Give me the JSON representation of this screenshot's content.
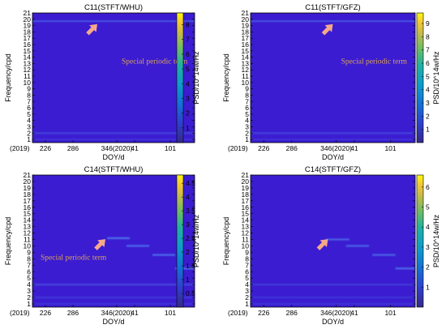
{
  "colors": {
    "background": "#3b1cd0",
    "annotation": "#d9a15a",
    "arrow": "#f5a98a",
    "frame": "#000000"
  },
  "chart_data": [
    {
      "type": "heatmap",
      "title": "C11(STFT/WHU)",
      "xlabel": "DOY/d",
      "ylabel": "Frequency/cpd",
      "colorbar_label": "PSD/10^14w/Hz",
      "x_ticks": [
        "(2019)",
        "226",
        "286",
        "346(2020)",
        "41",
        "101"
      ],
      "y_ticks": [
        "1",
        "2",
        "3",
        "4",
        "5",
        "6",
        "7",
        "8",
        "9",
        "10",
        "11",
        "12",
        "13",
        "14",
        "15",
        "16",
        "17",
        "18",
        "19",
        "20",
        "21"
      ],
      "ylim": [
        0.5,
        21
      ],
      "colorbar_ticks": [
        "1",
        "2",
        "3",
        "4",
        "5",
        "6",
        "7",
        "8"
      ],
      "colorbar_range": [
        0,
        8.8
      ],
      "annotation": "Special periodic term",
      "features": [
        {
          "frequency": 2,
          "intensity": 0.3,
          "kind": "band"
        },
        {
          "frequency": 1,
          "intensity": 0.18,
          "kind": "band"
        },
        {
          "frequency": 19.7,
          "intensity": 0.55,
          "kind": "line"
        }
      ],
      "arrow_target_frequency": 19.5
    },
    {
      "type": "heatmap",
      "title": "C11(STFT/GFZ)",
      "xlabel": "DOY/d",
      "ylabel": "Frequency/cpd",
      "colorbar_label": "PSD/10^14w/Hz",
      "x_ticks": [
        "(2019)",
        "226",
        "286",
        "346(2020)",
        "41",
        "101"
      ],
      "y_ticks": [
        "1",
        "2",
        "3",
        "4",
        "5",
        "6",
        "7",
        "8",
        "9",
        "10",
        "11",
        "12",
        "13",
        "14",
        "15",
        "16",
        "17",
        "18",
        "19",
        "20",
        "21"
      ],
      "ylim": [
        0.5,
        21
      ],
      "colorbar_ticks": [
        "1",
        "2",
        "3",
        "4",
        "5",
        "6",
        "7",
        "8",
        "9"
      ],
      "colorbar_range": [
        0,
        9.8
      ],
      "annotation": "Special periodic term",
      "features": [
        {
          "frequency": 2,
          "intensity": 0.3,
          "kind": "band"
        },
        {
          "frequency": 1,
          "intensity": 0.18,
          "kind": "band"
        },
        {
          "frequency": 19.7,
          "intensity": 0.55,
          "kind": "line"
        }
      ],
      "arrow_target_frequency": 19.5
    },
    {
      "type": "heatmap",
      "title": "C14(STFT/WHU)",
      "xlabel": "DOY/d",
      "ylabel": "Frequency/cpd",
      "colorbar_label": "PSD/10^14w/Hz",
      "x_ticks": [
        "(2019)",
        "226",
        "286",
        "346(2020)",
        "41",
        "101"
      ],
      "y_ticks": [
        "1",
        "2",
        "3",
        "4",
        "5",
        "6",
        "7",
        "8",
        "9",
        "10",
        "11",
        "12",
        "13",
        "14",
        "15",
        "16",
        "17",
        "18",
        "19",
        "20",
        "21"
      ],
      "ylim": [
        0.5,
        21
      ],
      "colorbar_ticks": [
        "0.5",
        "1",
        "1.5",
        "2",
        "2.5",
        "3",
        "3.5",
        "4",
        "4.5"
      ],
      "colorbar_range": [
        0,
        4.8
      ],
      "annotation": "Special periodic term",
      "features": [
        {
          "frequency": 4,
          "intensity": 0.35,
          "kind": "band"
        },
        {
          "frequency": 2,
          "intensity": 0.22,
          "kind": "band"
        },
        {
          "frequency": 1,
          "intensity": 0.18,
          "kind": "band"
        }
      ],
      "drift": [
        {
          "frequency": 11.2,
          "x_start": 0.46,
          "x_end": 0.6,
          "intensity": 0.6
        },
        {
          "frequency": 10.0,
          "x_start": 0.58,
          "x_end": 0.72,
          "intensity": 0.55
        },
        {
          "frequency": 8.6,
          "x_start": 0.74,
          "x_end": 0.88,
          "intensity": 0.55
        },
        {
          "frequency": 6.5,
          "x_start": 0.88,
          "x_end": 1.0,
          "intensity": 0.6
        }
      ],
      "arrow_target_frequency": 11.3
    },
    {
      "type": "heatmap",
      "title": "C14(STFT/GFZ)",
      "xlabel": "DOY/d",
      "ylabel": "Frequency/cpd",
      "colorbar_label": "PSD/10^14w/Hz",
      "x_ticks": [
        "(2019)",
        "226",
        "286",
        "346(2020)",
        "41",
        "101"
      ],
      "y_ticks": [
        "1",
        "2",
        "3",
        "4",
        "5",
        "6",
        "7",
        "8",
        "9",
        "10",
        "11",
        "12",
        "13",
        "14",
        "15",
        "16",
        "17",
        "18",
        "19",
        "20",
        "21"
      ],
      "ylim": [
        0.5,
        21
      ],
      "colorbar_ticks": [
        "1",
        "2",
        "3",
        "4",
        "5",
        "6"
      ],
      "colorbar_range": [
        0,
        6.6
      ],
      "annotation": "",
      "features": [
        {
          "frequency": 4,
          "intensity": 0.25,
          "kind": "band"
        },
        {
          "frequency": 2,
          "intensity": 0.2,
          "kind": "band"
        },
        {
          "frequency": 1,
          "intensity": 0.18,
          "kind": "band"
        }
      ],
      "drift": [
        {
          "frequency": 11.0,
          "x_start": 0.46,
          "x_end": 0.6,
          "intensity": 0.5
        },
        {
          "frequency": 10.0,
          "x_start": 0.58,
          "x_end": 0.72,
          "intensity": 0.5
        },
        {
          "frequency": 8.6,
          "x_start": 0.74,
          "x_end": 0.88,
          "intensity": 0.5
        },
        {
          "frequency": 6.5,
          "x_start": 0.88,
          "x_end": 1.0,
          "intensity": 0.55
        }
      ],
      "arrow_target_frequency": 11.3
    }
  ]
}
